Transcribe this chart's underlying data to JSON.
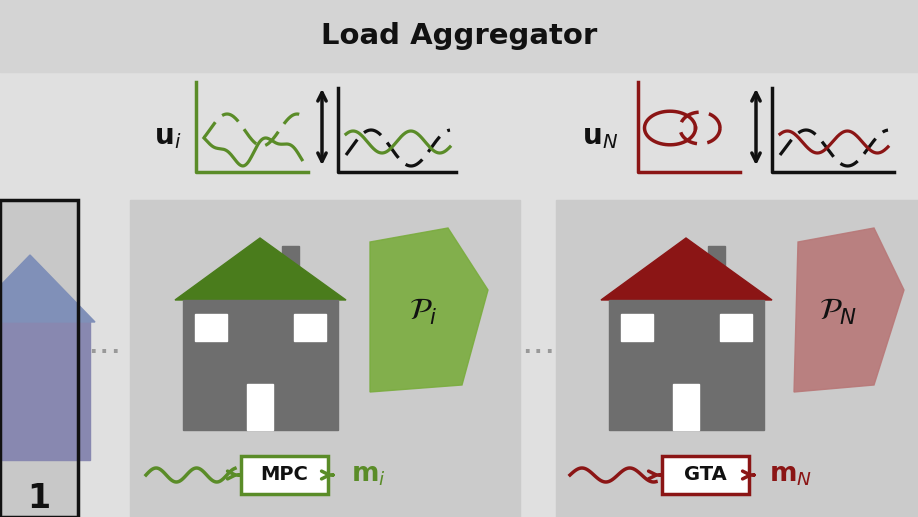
{
  "title": "Load Aggregator",
  "bg_top": "#d4d4d4",
  "bg_main": "#e0e0e0",
  "bg_panel": "#cccccc",
  "green": "#5a8c28",
  "green_roof": "#4a7c1c",
  "green_panel_shape": "#7aac3e",
  "red": "#8b1515",
  "red_roof": "#8b1515",
  "red_panel_shape": "#b87878",
  "blue_house": "#8090b8",
  "house_gray": "#6e6e6e",
  "white": "#ffffff",
  "black": "#111111",
  "dark_gray_dots": "#999999"
}
